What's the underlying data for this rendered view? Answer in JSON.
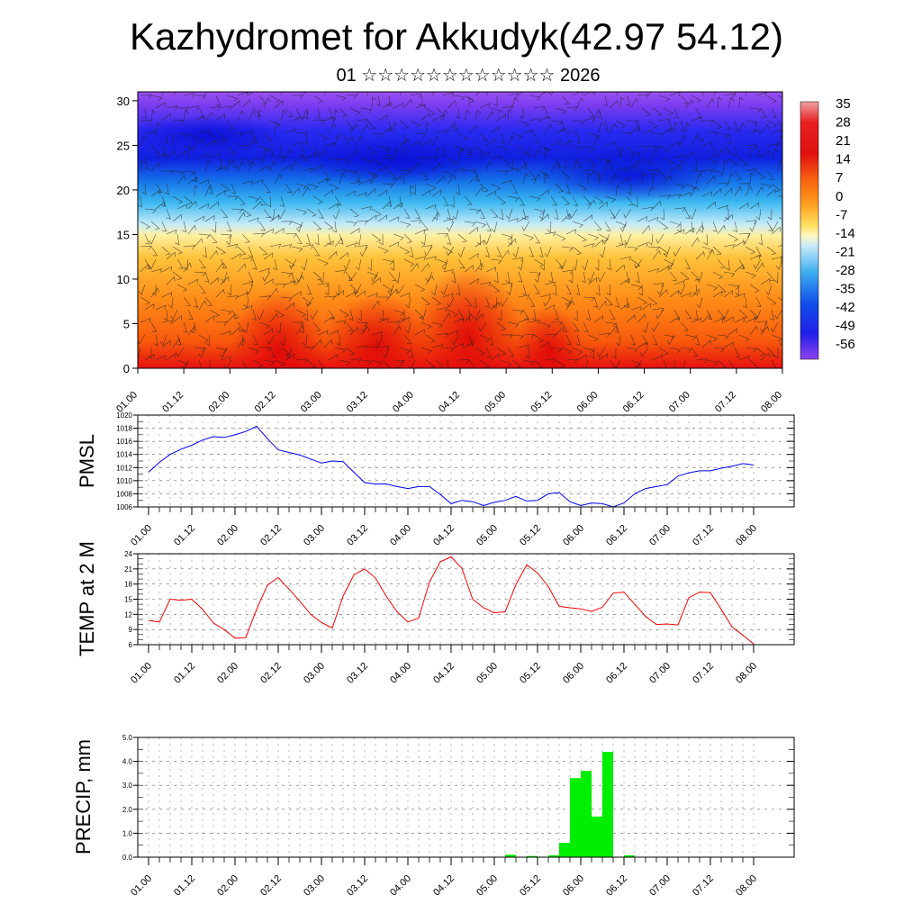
{
  "header": {
    "title": "Kazhydromet for Akkudyk(42.97 54.12)",
    "subtitle": "01 ☆☆☆☆☆☆☆☆☆☆☆☆ 2026"
  },
  "chart_data": [
    {
      "type": "heatmap",
      "title": "",
      "ylabel": "",
      "xlabel": "",
      "x_ticks": [
        "01.00",
        "01.12",
        "02.00",
        "02.12",
        "03.00",
        "03.12",
        "04.00",
        "04.12",
        "05.00",
        "05.12",
        "06.00",
        "06.12",
        "07.00",
        "07.12",
        "08.00"
      ],
      "y_ticks": [
        0,
        5,
        10,
        15,
        20,
        25,
        30
      ],
      "ylim": [
        0,
        31
      ],
      "colorbar": {
        "labels": [
          "35",
          "28",
          "21",
          "14",
          "7",
          "0",
          "-7",
          "-14",
          "-21",
          "-28",
          "-35",
          "-42",
          "-49",
          "-56"
        ],
        "range": [
          -63,
          42
        ]
      },
      "overlay": "wind barbs",
      "colors": {
        "hot": "#e01010",
        "warm": "#ff9a10",
        "mild": "#ffe070",
        "cool": "#30b8f0",
        "cold": "#1020e0",
        "coldest": "#8a3cf0"
      }
    },
    {
      "type": "line",
      "ylabel": "PMSL",
      "x_ticks": [
        "01.00",
        "01.12",
        "02.00",
        "02.12",
        "03.00",
        "03.12",
        "04.00",
        "04.12",
        "05.00",
        "05.12",
        "06.00",
        "06.12",
        "07.00",
        "07.12",
        "08.00"
      ],
      "y_ticks": [
        "1006",
        "1008",
        "1010",
        "1012",
        "1014",
        "1016",
        "1018",
        "1020"
      ],
      "ylim": [
        1006,
        1020
      ],
      "grid": true,
      "series": [
        {
          "color": "#0000ff",
          "x": [
            0,
            1,
            2,
            3,
            4,
            5,
            6,
            7,
            8,
            9,
            10,
            11,
            12,
            13,
            14,
            15,
            16,
            17,
            18,
            19,
            20,
            21,
            22,
            23,
            24,
            25,
            26,
            27,
            28,
            29,
            30,
            31,
            32,
            33,
            34,
            35,
            36,
            37,
            38,
            39,
            40,
            41,
            42,
            43,
            44,
            45,
            46,
            47,
            48,
            49,
            50,
            51,
            52,
            53,
            54,
            55,
            56
          ],
          "values": [
            1011.3,
            1012.8,
            1014.0,
            1014.8,
            1015.4,
            1016.2,
            1016.7,
            1016.6,
            1017.0,
            1017.5,
            1018.3,
            1016.4,
            1014.7,
            1014.3,
            1013.9,
            1013.3,
            1012.7,
            1013.0,
            1012.9,
            1011.3,
            1009.7,
            1009.5,
            1009.5,
            1009.1,
            1008.8,
            1009.1,
            1009.1,
            1007.9,
            1006.5,
            1007.0,
            1006.8,
            1006.2,
            1006.7,
            1007.0,
            1007.6,
            1006.9,
            1007.0,
            1008.0,
            1008.2,
            1006.8,
            1006.2,
            1006.6,
            1006.5,
            1006.0,
            1006.6,
            1008.0,
            1008.8,
            1009.1,
            1009.4,
            1010.7,
            1011.2,
            1011.5,
            1011.5,
            1011.9,
            1012.2,
            1012.6,
            1012.4
          ]
        }
      ]
    },
    {
      "type": "line",
      "ylabel": "TEMP at 2 M",
      "x_ticks": [
        "01.00",
        "01.12",
        "02.00",
        "02.12",
        "03.00",
        "03.12",
        "04.00",
        "04.12",
        "05.00",
        "05.12",
        "06.00",
        "06.12",
        "07.00",
        "07.12",
        "08.00"
      ],
      "y_ticks": [
        "6",
        "9",
        "12",
        "15",
        "18",
        "21",
        "24"
      ],
      "ylim": [
        6,
        24
      ],
      "grid": true,
      "series": [
        {
          "color": "#ff0000",
          "x": [
            0,
            1,
            2,
            3,
            4,
            5,
            6,
            7,
            8,
            9,
            10,
            11,
            12,
            13,
            14,
            15,
            16,
            17,
            18,
            19,
            20,
            21,
            22,
            23,
            24,
            25,
            26,
            27,
            28,
            29,
            30,
            31,
            32,
            33,
            34,
            35,
            36,
            37,
            38,
            39,
            40,
            41,
            42,
            43,
            44,
            45,
            46,
            47,
            48,
            49,
            50,
            51,
            52,
            53,
            54,
            55,
            56
          ],
          "values": [
            10.8,
            10.5,
            15.0,
            14.8,
            15.0,
            13.0,
            10.3,
            9.0,
            7.3,
            7.4,
            13.0,
            17.8,
            19.3,
            17.0,
            14.6,
            12.0,
            10.4,
            9.3,
            15.6,
            19.8,
            21.0,
            19.2,
            15.6,
            12.5,
            10.5,
            11.3,
            18.4,
            22.4,
            23.4,
            21.1,
            15.0,
            13.3,
            12.3,
            12.5,
            17.9,
            21.8,
            20.2,
            17.5,
            13.6,
            13.3,
            13.1,
            12.6,
            13.4,
            16.2,
            16.4,
            14.0,
            11.6,
            10.0,
            10.1,
            9.9,
            15.3,
            16.4,
            16.3,
            13.0,
            9.5,
            7.9,
            6.1
          ]
        }
      ]
    },
    {
      "type": "bar",
      "ylabel": "PRECIP, mm",
      "x_ticks": [
        "01.00",
        "01.12",
        "02.00",
        "02.12",
        "03.00",
        "03.12",
        "04.00",
        "04.12",
        "05.00",
        "05.12",
        "06.00",
        "06.12",
        "07.00",
        "07.12",
        "08.00"
      ],
      "y_ticks": [
        "0.0",
        "1.0",
        "2.0",
        "3.0",
        "4.0",
        "5.0"
      ],
      "ylim": [
        0,
        5
      ],
      "grid": true,
      "color": "#00ee00",
      "series": [
        {
          "x": [
            34,
            35,
            36,
            37,
            38,
            39,
            40,
            41,
            42,
            43,
            44,
            45,
            46,
            47,
            48
          ],
          "values": [
            0.1,
            0.0,
            0.05,
            0.0,
            0.08,
            0.6,
            3.3,
            3.6,
            1.7,
            4.4,
            0.0,
            0.08,
            0.0,
            0.0,
            0.0
          ]
        }
      ]
    }
  ]
}
